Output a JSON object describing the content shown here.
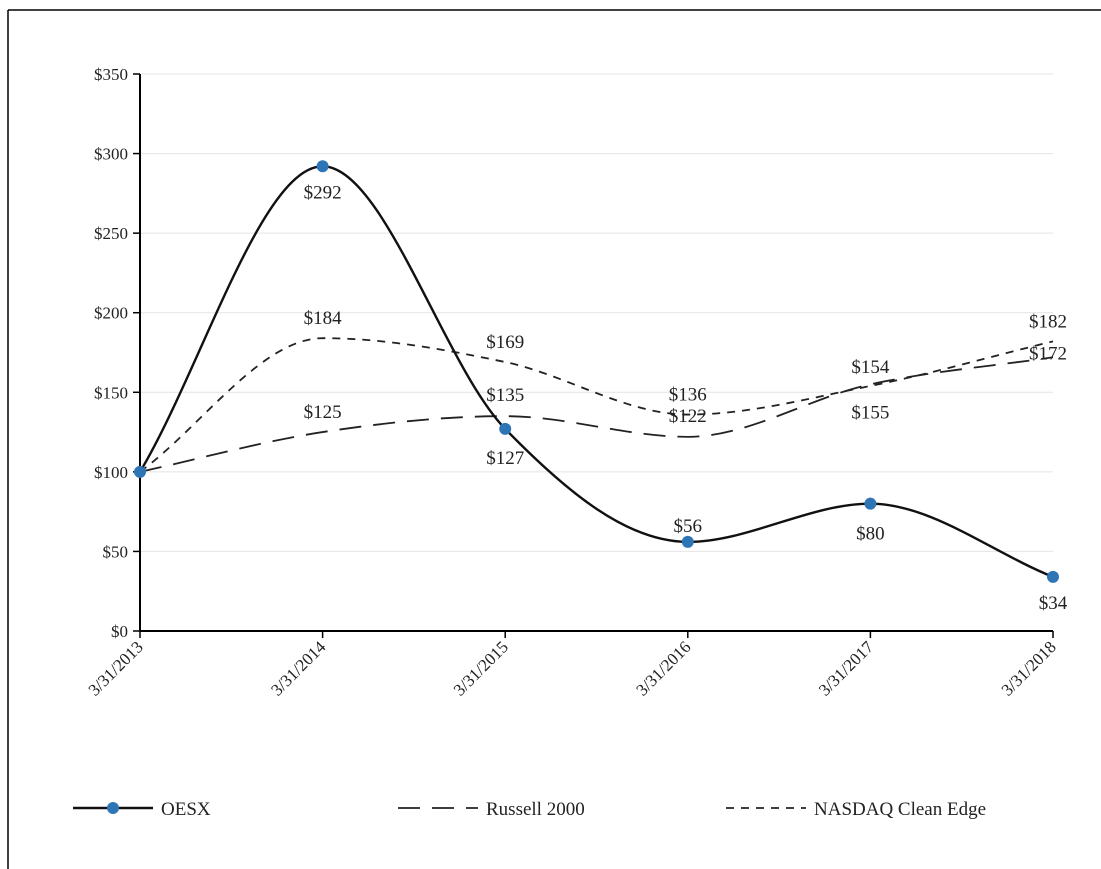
{
  "chart_data": {
    "type": "line",
    "categories": [
      "3/31/2013",
      "3/31/2014",
      "3/31/2015",
      "3/31/2016",
      "3/31/2017",
      "3/31/2018"
    ],
    "ylim": [
      0,
      350
    ],
    "yticks": [
      0,
      50,
      100,
      150,
      200,
      250,
      300,
      350
    ],
    "ytick_labels": [
      "$0",
      "$50",
      "$100",
      "$150",
      "$200",
      "$250",
      "$300",
      "$350"
    ],
    "grid": true,
    "legend_position": "bottom",
    "series": [
      {
        "name": "OESX",
        "values": [
          100,
          292,
          127,
          56,
          80,
          34
        ],
        "labels": [
          "",
          "$292",
          "$127",
          "$56",
          "$80",
          "$34"
        ],
        "style": "solid",
        "marker": "circle",
        "marker_color": "#2e75b6",
        "line_color": "#111111"
      },
      {
        "name": "Russell 2000",
        "values": [
          100,
          125,
          135,
          122,
          155,
          172
        ],
        "labels": [
          "",
          "$125",
          "$135",
          "$122",
          "$155",
          "$172"
        ],
        "style": "long-dash",
        "line_color": "#222222"
      },
      {
        "name": "NASDAQ Clean Edge",
        "values": [
          100,
          184,
          169,
          136,
          154,
          182
        ],
        "labels": [
          "",
          "$184",
          "$169",
          "$136",
          "$154",
          "$182"
        ],
        "style": "short-dash",
        "line_color": "#222222"
      }
    ]
  }
}
